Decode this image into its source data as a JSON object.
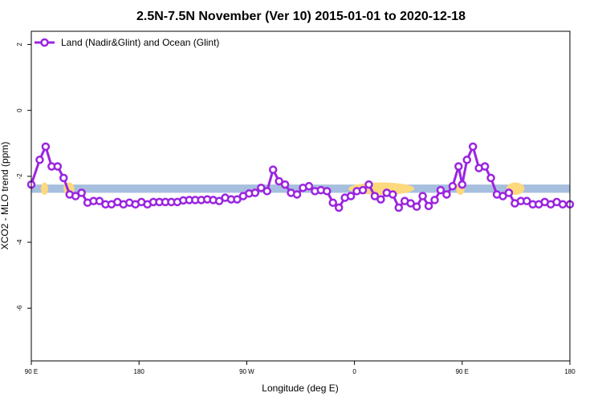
{
  "chart_data": {
    "type": "line",
    "title": "2.5N-7.5N November (Ver 10)   2015-01-01 to 2020-12-18",
    "xlabel": "Longitude (deg E)",
    "ylabel": "XCO2 - MLO trend (ppm)",
    "xlim": [
      90,
      540
    ],
    "ylim": [
      -7.6,
      2.4
    ],
    "x_ticks": [
      {
        "value": 90,
        "label": "90 E"
      },
      {
        "value": 180,
        "label": "180"
      },
      {
        "value": 270,
        "label": "90 W"
      },
      {
        "value": 360,
        "label": "0"
      },
      {
        "value": 450,
        "label": "90 E"
      },
      {
        "value": 540,
        "label": "180"
      }
    ],
    "y_ticks": [
      {
        "value": 2,
        "label": "2"
      },
      {
        "value": 0,
        "label": "0"
      },
      {
        "value": -2,
        "label": "-2"
      },
      {
        "value": -4,
        "label": "-4"
      },
      {
        "value": -6,
        "label": "-6"
      }
    ],
    "grid": false,
    "legend_position": "top-left",
    "background_band": {
      "y_range": [
        -2.5,
        -2.25
      ],
      "ocean_color": "#a7bfdf",
      "land_color": "#fdd97e",
      "land_segments": [
        [
          98,
          104
        ],
        [
          117,
          126
        ],
        [
          355,
          410
        ],
        [
          445,
          452
        ],
        [
          487,
          502
        ]
      ]
    },
    "series": [
      {
        "name": "Land (Nadir&Glint) and Ocean (Glint)",
        "color": "#9b24e0",
        "x": [
          90,
          97,
          102,
          107,
          112,
          117,
          122,
          127,
          132,
          137,
          142,
          147,
          152,
          157,
          162,
          167,
          172,
          177,
          182,
          187,
          192,
          197,
          202,
          207,
          212,
          217,
          222,
          227,
          232,
          237,
          242,
          247,
          252,
          257,
          262,
          267,
          272,
          277,
          282,
          287,
          292,
          297,
          302,
          307,
          312,
          317,
          322,
          327,
          332,
          337,
          342,
          347,
          352,
          357,
          362,
          367,
          372,
          377,
          382,
          387,
          392,
          397,
          402,
          407,
          412,
          417,
          422,
          427,
          432,
          437,
          442,
          447,
          450,
          454,
          459,
          464,
          469,
          474,
          479,
          484,
          489,
          494,
          499,
          504,
          509,
          514,
          519,
          524,
          529,
          534,
          540
        ],
        "y": [
          -2.25,
          -1.5,
          -1.1,
          -1.7,
          -1.7,
          -2.05,
          -2.55,
          -2.6,
          -2.5,
          -2.8,
          -2.75,
          -2.75,
          -2.85,
          -2.85,
          -2.78,
          -2.85,
          -2.8,
          -2.85,
          -2.78,
          -2.85,
          -2.78,
          -2.78,
          -2.78,
          -2.78,
          -2.78,
          -2.73,
          -2.72,
          -2.72,
          -2.72,
          -2.7,
          -2.72,
          -2.75,
          -2.65,
          -2.7,
          -2.7,
          -2.6,
          -2.52,
          -2.5,
          -2.35,
          -2.45,
          -1.8,
          -2.15,
          -2.25,
          -2.5,
          -2.55,
          -2.35,
          -2.3,
          -2.45,
          -2.42,
          -2.45,
          -2.8,
          -2.95,
          -2.65,
          -2.6,
          -2.45,
          -2.42,
          -2.25,
          -2.6,
          -2.7,
          -2.5,
          -2.55,
          -2.95,
          -2.75,
          -2.82,
          -2.92,
          -2.6,
          -2.9,
          -2.72,
          -2.42,
          -2.55,
          -2.3,
          -1.7,
          -2.25,
          -1.5,
          -1.1,
          -1.75,
          -1.7,
          -2.05,
          -2.55,
          -2.6,
          -2.5,
          -2.82,
          -2.75,
          -2.75,
          -2.85,
          -2.85,
          -2.78,
          -2.85,
          -2.78,
          -2.85,
          -2.85
        ]
      }
    ]
  }
}
